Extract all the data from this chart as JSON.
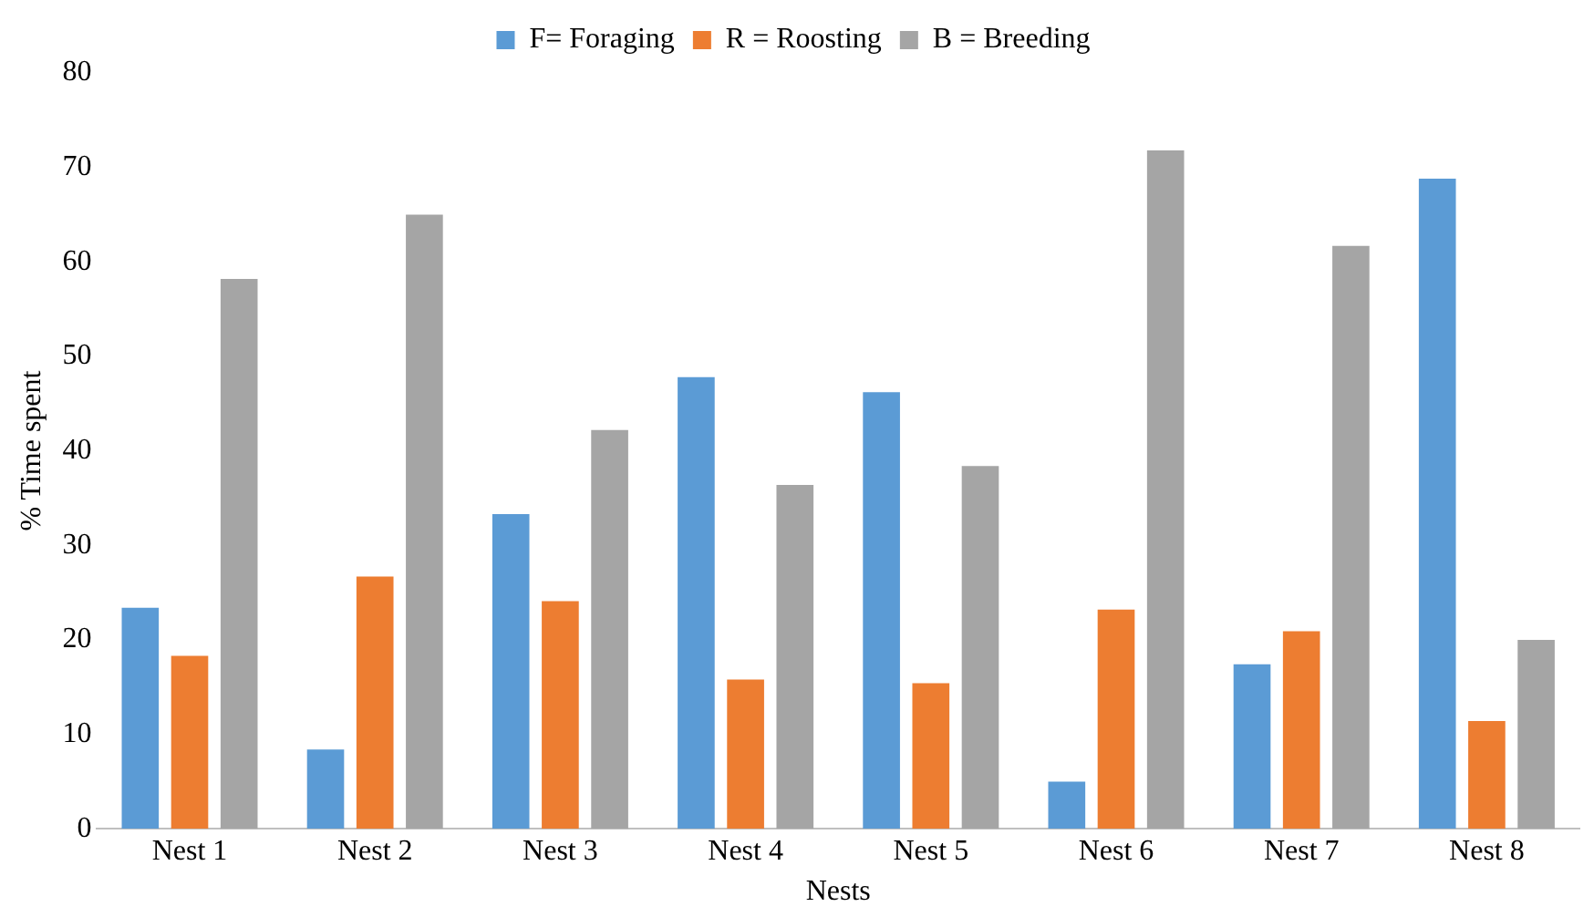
{
  "chart_data": {
    "type": "bar",
    "xlabel": "Nests",
    "ylabel": "% Time spent",
    "categories": [
      "Nest 1",
      "Nest 2",
      "Nest 3",
      "Nest 4",
      "Nest 5",
      "Nest 6",
      "Nest 7",
      "Nest 8"
    ],
    "series": [
      {
        "name": "F= Foraging",
        "color": "#5b9bd5",
        "values": [
          23.4,
          8.4,
          33.3,
          47.8,
          46.2,
          5,
          17.4,
          68.8
        ]
      },
      {
        "name": "R = Roosting",
        "color": "#ed7d31",
        "values": [
          18.3,
          26.7,
          24.1,
          15.8,
          15.4,
          23.2,
          20.9,
          11.4
        ]
      },
      {
        "name": "B = Breeding",
        "color": "#a5a5a5",
        "values": [
          58.2,
          65,
          42.2,
          36.4,
          38.4,
          71.8,
          61.7,
          20
        ]
      }
    ],
    "ylim": [
      0,
      80
    ],
    "yticks": [
      0,
      10,
      20,
      30,
      40,
      50,
      60,
      70,
      80
    ],
    "grid": false,
    "legend": "top"
  }
}
